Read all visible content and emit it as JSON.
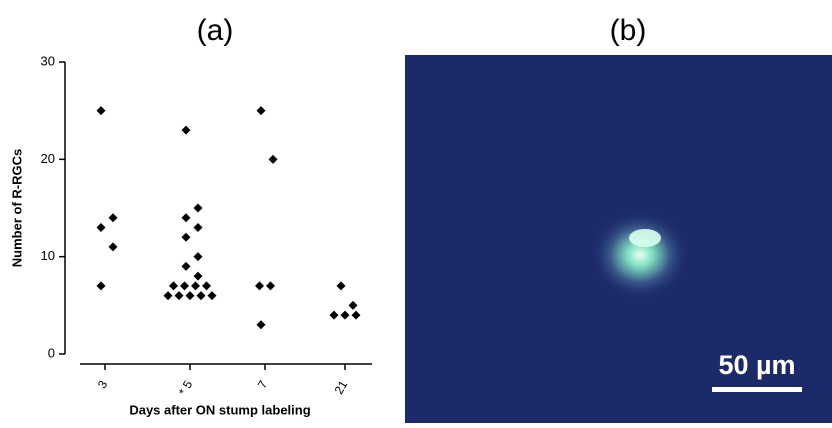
{
  "chart_data": {
    "type": "strip",
    "title": "(a)",
    "x_label": "Days after ON stump labeling",
    "y_label": "Number of R-RGCs",
    "categories": [
      "3",
      "* 5",
      "7",
      "21"
    ],
    "values": [
      [
        25,
        14,
        13,
        11,
        7
      ],
      [
        23,
        15,
        14,
        13,
        12,
        10,
        9,
        8,
        7,
        7,
        7,
        7,
        6,
        6,
        6,
        6,
        6
      ],
      [
        25,
        20,
        7,
        7,
        3
      ],
      [
        7,
        5,
        4,
        4,
        4
      ]
    ],
    "color": "#000000",
    "ylim": [
      0,
      30
    ],
    "yticks": [
      0,
      10,
      20,
      30
    ]
  },
  "image_panel": {
    "title": "(b)",
    "scale_bar": "50 µm"
  }
}
